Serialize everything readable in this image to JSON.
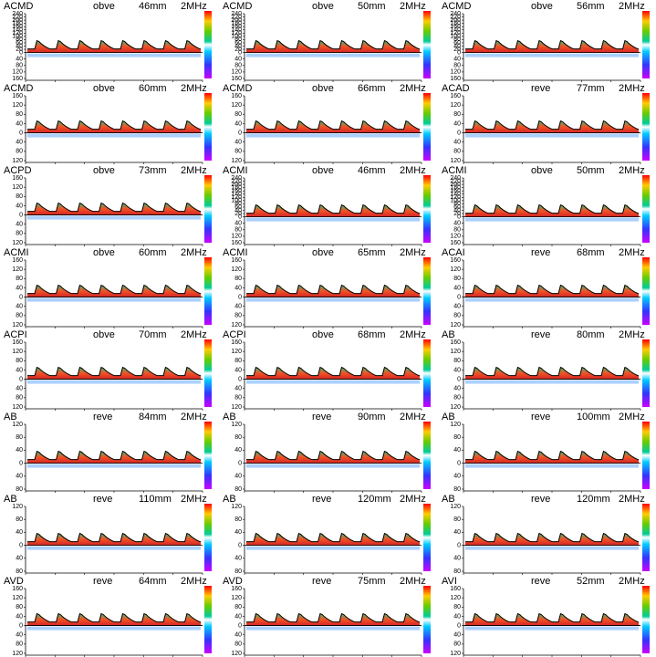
{
  "panels": [
    {
      "vessel": "ACMD",
      "direction": "obve",
      "depth": "46mm",
      "frequency": "2MHz",
      "yticks": [
        240,
        220,
        200,
        180,
        160,
        140,
        120,
        100,
        80,
        60,
        40,
        20,
        0,
        {
          "value": -40,
          "label": "40"
        },
        {
          "value": -80,
          "label": "80"
        },
        {
          "value": -120,
          "label": "120"
        },
        {
          "value": -160,
          "label": "160"
        }
      ]
    },
    {
      "vessel": "ACMD",
      "direction": "obve",
      "depth": "50mm",
      "frequency": "2MHz",
      "yticks": [
        240,
        220,
        200,
        180,
        160,
        140,
        120,
        100,
        80,
        60,
        40,
        20,
        0,
        {
          "value": -40,
          "label": "40"
        },
        {
          "value": -80,
          "label": "80"
        },
        {
          "value": -120,
          "label": "120"
        },
        {
          "value": -160,
          "label": "160"
        }
      ]
    },
    {
      "vessel": "ACMD",
      "direction": "obve",
      "depth": "56mm",
      "frequency": "2MHz",
      "yticks": [
        240,
        220,
        200,
        180,
        160,
        140,
        120,
        100,
        80,
        60,
        40,
        20,
        0,
        {
          "value": -40,
          "label": "40"
        },
        {
          "value": -80,
          "label": "80"
        },
        {
          "value": -120,
          "label": "120"
        },
        {
          "value": -160,
          "label": "160"
        }
      ]
    },
    {
      "vessel": "ACMD",
      "direction": "obve",
      "depth": "60mm",
      "frequency": "2MHz",
      "yticks": [
        160,
        120,
        80,
        40,
        0,
        {
          "value": -40,
          "label": "40"
        },
        {
          "value": -80,
          "label": "80"
        },
        {
          "value": -120,
          "label": "120"
        }
      ]
    },
    {
      "vessel": "ACMD",
      "direction": "obve",
      "depth": "66mm",
      "frequency": "2MHz",
      "yticks": [
        160,
        120,
        80,
        40,
        0,
        {
          "value": -40,
          "label": "40"
        },
        {
          "value": -80,
          "label": "80"
        },
        {
          "value": -120,
          "label": "120"
        }
      ]
    },
    {
      "vessel": "ACAD",
      "direction": "reve",
      "depth": "77mm",
      "frequency": "2MHz",
      "yticks": [
        160,
        120,
        80,
        40,
        0,
        {
          "value": -40,
          "label": "40"
        },
        {
          "value": -80,
          "label": "80"
        },
        {
          "value": -120,
          "label": "120"
        }
      ]
    },
    {
      "vessel": "ACPD",
      "direction": "obve",
      "depth": "73mm",
      "frequency": "2MHz",
      "yticks": [
        160,
        120,
        80,
        40,
        0,
        {
          "value": -40,
          "label": "40"
        },
        {
          "value": -80,
          "label": "80"
        },
        {
          "value": -120,
          "label": "120"
        }
      ]
    },
    {
      "vessel": "ACMI",
      "direction": "obve",
      "depth": "46mm",
      "frequency": "2MHz",
      "yticks": [
        240,
        220,
        200,
        180,
        160,
        140,
        120,
        100,
        80,
        60,
        40,
        20,
        0,
        {
          "value": -40,
          "label": "40"
        },
        {
          "value": -80,
          "label": "80"
        },
        {
          "value": -120,
          "label": "120"
        },
        {
          "value": -160,
          "label": "160"
        }
      ]
    },
    {
      "vessel": "ACMI",
      "direction": "obve",
      "depth": "50mm",
      "frequency": "2MHz",
      "yticks": [
        240,
        220,
        200,
        180,
        160,
        140,
        120,
        100,
        80,
        60,
        40,
        20,
        0,
        {
          "value": -40,
          "label": "40"
        },
        {
          "value": -80,
          "label": "80"
        },
        {
          "value": -120,
          "label": "120"
        },
        {
          "value": -160,
          "label": "160"
        }
      ]
    },
    {
      "vessel": "ACMI",
      "direction": "obve",
      "depth": "60mm",
      "frequency": "2MHz",
      "yticks": [
        160,
        120,
        80,
        40,
        0,
        {
          "value": -40,
          "label": "40"
        },
        {
          "value": -80,
          "label": "80"
        },
        {
          "value": -120,
          "label": "120"
        }
      ]
    },
    {
      "vessel": "ACMI",
      "direction": "obve",
      "depth": "65mm",
      "frequency": "2MHz",
      "yticks": [
        160,
        120,
        80,
        40,
        0,
        {
          "value": -40,
          "label": "40"
        },
        {
          "value": -80,
          "label": "80"
        },
        {
          "value": -120,
          "label": "120"
        }
      ]
    },
    {
      "vessel": "ACAI",
      "direction": "reve",
      "depth": "68mm",
      "frequency": "2MHz",
      "yticks": [
        160,
        120,
        80,
        40,
        0,
        {
          "value": -40,
          "label": "40"
        },
        {
          "value": -80,
          "label": "80"
        },
        {
          "value": -120,
          "label": "120"
        }
      ]
    },
    {
      "vessel": "ACPI",
      "direction": "obve",
      "depth": "70mm",
      "frequency": "2MHz",
      "yticks": [
        160,
        120,
        80,
        40,
        0,
        {
          "value": -40,
          "label": "40"
        },
        {
          "value": -80,
          "label": "80"
        },
        {
          "value": -120,
          "label": "120"
        }
      ]
    },
    {
      "vessel": "ACPI",
      "direction": "obve",
      "depth": "68mm",
      "frequency": "2MHz",
      "yticks": [
        160,
        120,
        80,
        40,
        0,
        {
          "value": -40,
          "label": "40"
        },
        {
          "value": -80,
          "label": "80"
        },
        {
          "value": -120,
          "label": "120"
        }
      ]
    },
    {
      "vessel": "AB",
      "direction": "reve",
      "depth": "80mm",
      "frequency": "2MHz",
      "yticks": [
        160,
        120,
        80,
        40,
        0,
        {
          "value": -40,
          "label": "40"
        },
        {
          "value": -80,
          "label": "80"
        },
        {
          "value": -120,
          "label": "120"
        }
      ]
    },
    {
      "vessel": "AB",
      "direction": "reve",
      "depth": "84mm",
      "frequency": "2MHz",
      "yticks": [
        120,
        80,
        40,
        0,
        {
          "value": -40,
          "label": "40"
        },
        {
          "value": -80,
          "label": "80"
        }
      ]
    },
    {
      "vessel": "AB",
      "direction": "reve",
      "depth": "90mm",
      "frequency": "2MHz",
      "yticks": [
        120,
        80,
        40,
        0,
        {
          "value": -40,
          "label": "40"
        },
        {
          "value": -80,
          "label": "80"
        }
      ]
    },
    {
      "vessel": "AB",
      "direction": "reve",
      "depth": "100mm",
      "frequency": "2MHz",
      "yticks": [
        120,
        80,
        40,
        0,
        {
          "value": -40,
          "label": "40"
        },
        {
          "value": -80,
          "label": "80"
        }
      ]
    },
    {
      "vessel": "AB",
      "direction": "reve",
      "depth": "110mm",
      "frequency": "2MHz",
      "yticks": [
        120,
        80,
        40,
        0,
        {
          "value": -40,
          "label": "40"
        },
        {
          "value": -80,
          "label": "80"
        }
      ]
    },
    {
      "vessel": "AB",
      "direction": "reve",
      "depth": "120mm",
      "frequency": "2MHz",
      "yticks": [
        120,
        80,
        40,
        0,
        {
          "value": -40,
          "label": "40"
        },
        {
          "value": -80,
          "label": "80"
        }
      ]
    },
    {
      "vessel": "AB",
      "direction": "reve",
      "depth": "120mm",
      "frequency": "2MHz",
      "yticks": [
        120,
        80,
        40,
        0,
        {
          "value": -40,
          "label": "40"
        },
        {
          "value": -80,
          "label": "80"
        }
      ]
    },
    {
      "vessel": "AVD",
      "direction": "reve",
      "depth": "64mm",
      "frequency": "2MHz",
      "yticks": [
        160,
        120,
        80,
        40,
        0,
        {
          "value": -40,
          "label": "40"
        },
        {
          "value": -80,
          "label": "80"
        },
        {
          "value": -120,
          "label": "120"
        }
      ]
    },
    {
      "vessel": "AVD",
      "direction": "reve",
      "depth": "75mm",
      "frequency": "2MHz",
      "yticks": [
        160,
        120,
        80,
        40,
        0,
        {
          "value": -40,
          "label": "40"
        },
        {
          "value": -80,
          "label": "80"
        },
        {
          "value": -120,
          "label": "120"
        }
      ]
    },
    {
      "vessel": "AVI",
      "direction": "reve",
      "depth": "52mm",
      "frequency": "2MHz",
      "yticks": [
        160,
        120,
        80,
        40,
        0,
        {
          "value": -40,
          "label": "40"
        },
        {
          "value": -80,
          "label": "80"
        },
        {
          "value": -120,
          "label": "120"
        }
      ]
    }
  ]
}
